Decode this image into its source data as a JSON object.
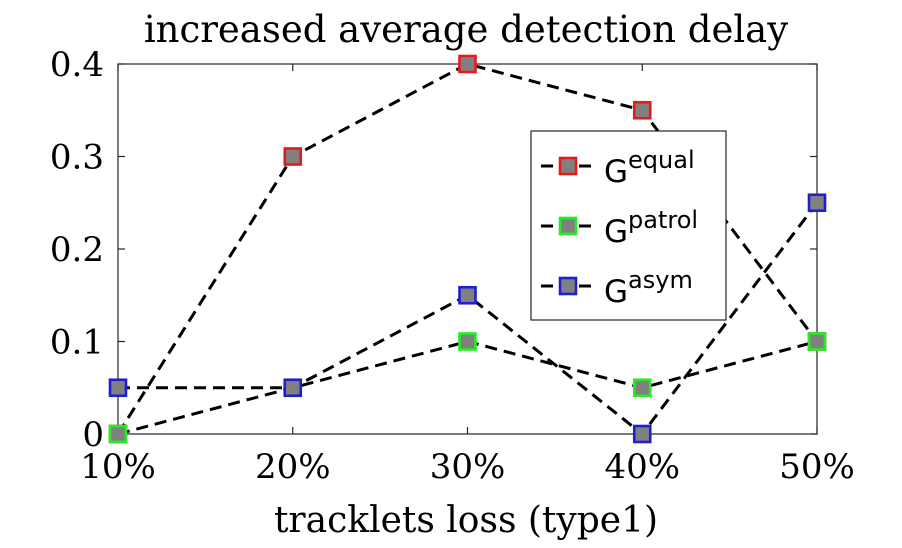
{
  "chart_data": {
    "type": "line",
    "title": "increased average detection delay",
    "xlabel": "tracklets loss (type1)",
    "ylabel": "",
    "categories": [
      "10%",
      "20%",
      "30%",
      "40%",
      "50%"
    ],
    "yticks": [
      "0",
      "0.1",
      "0.2",
      "0.3",
      "0.4"
    ],
    "ylim": [
      0,
      0.4
    ],
    "legend_position": "top-right",
    "series": [
      {
        "name": "G",
        "sup": "equal",
        "values": [
          0,
          0.3,
          0.4,
          0.35,
          0.1
        ],
        "marker_edge": "#e8191b",
        "marker_face": "#808080",
        "line_color": "#000000"
      },
      {
        "name": "G",
        "sup": "patrol",
        "values": [
          0,
          0.05,
          0.1,
          0.05,
          0.1
        ],
        "marker_edge": "#22ee22",
        "marker_face": "#808080",
        "line_color": "#000000"
      },
      {
        "name": "G",
        "sup": "asym",
        "values": [
          0.05,
          0.05,
          0.15,
          0,
          0.25
        ],
        "marker_edge": "#1f1fd0",
        "marker_face": "#808080",
        "line_color": "#000000"
      }
    ]
  }
}
